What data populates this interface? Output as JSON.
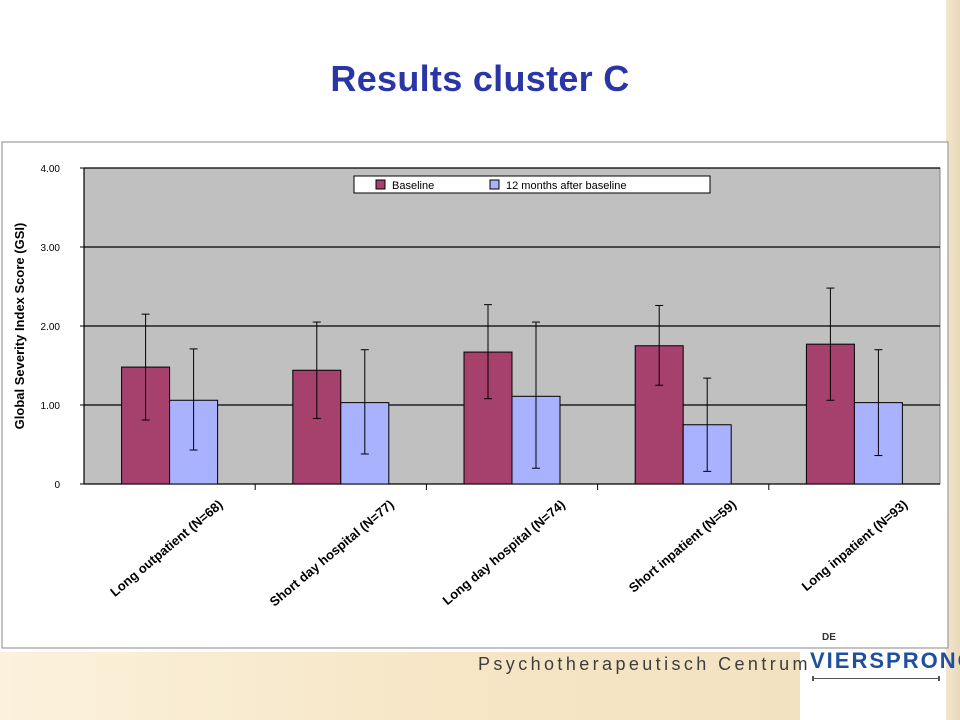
{
  "slide": {
    "title": "Results cluster C",
    "footer_text": "Psychotherapeutisch Centrum",
    "logo": {
      "prefix": "DE",
      "name": "VIERSPRONG"
    }
  },
  "colors": {
    "title": "#2b36a6",
    "plot_background": "#c0c0c0",
    "baseline": "#a6406d",
    "followup": "#a9b2ff",
    "footer_band": "#f6e6c6"
  },
  "chart_data": {
    "type": "bar",
    "title": "",
    "xlabel": "",
    "ylabel": "Global Severity Index Score (GSI)",
    "ylim": [
      0,
      4
    ],
    "yticks": [
      "0",
      "1.00",
      "2.00",
      "3.00",
      "4.00"
    ],
    "grid": true,
    "legend_position": "top",
    "categories": [
      "Long outpatient (N=68)",
      "Short day hospital (N=77)",
      "Long day hospital (N=74)",
      "Short inpatient (N=59)",
      "Long inpatient (N=93)"
    ],
    "series": [
      {
        "name": "Baseline",
        "color": "#a6406d",
        "values": [
          1.48,
          1.44,
          1.67,
          1.75,
          1.77
        ],
        "error_low": [
          0.81,
          0.83,
          1.08,
          1.25,
          1.06
        ],
        "error_high": [
          2.15,
          2.05,
          2.27,
          2.26,
          2.48
        ]
      },
      {
        "name": "12 months after baseline",
        "color": "#a9b2ff",
        "values": [
          1.06,
          1.03,
          1.11,
          0.75,
          1.03
        ],
        "error_low": [
          0.43,
          0.38,
          0.2,
          0.16,
          0.36
        ],
        "error_high": [
          1.71,
          1.7,
          2.05,
          1.34,
          1.7
        ]
      }
    ]
  }
}
